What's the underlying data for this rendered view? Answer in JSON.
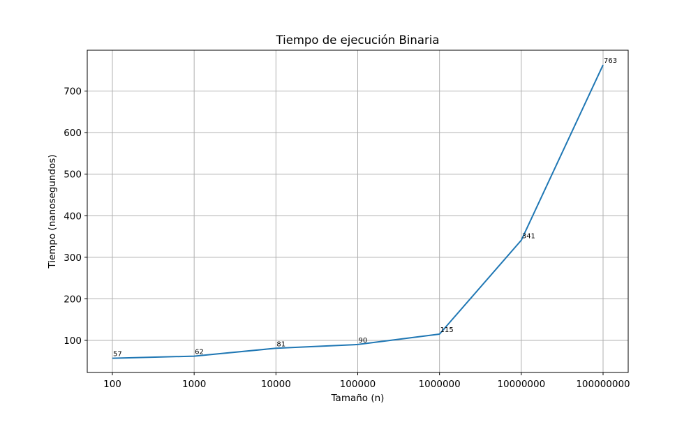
{
  "chart_data": {
    "type": "line",
    "title": "Tiempo de ejecución Binaria",
    "xlabel": "Tamaño (n)",
    "ylabel": "Tiempo (nanosegundos)",
    "categories": [
      "100",
      "1000",
      "10000",
      "100000",
      "1000000",
      "10000000",
      "100000000"
    ],
    "series": [
      {
        "values": [
          57,
          62,
          81,
          90,
          115,
          341,
          763
        ],
        "color": "#1f77b4"
      }
    ],
    "data_labels": [
      "57",
      "62",
      "81",
      "90",
      "115",
      "341",
      "763"
    ],
    "yticks": [
      100,
      200,
      300,
      400,
      500,
      600,
      700
    ],
    "ytick_labels": [
      "100",
      "200",
      "300",
      "400",
      "500",
      "600",
      "700"
    ],
    "ylim": [
      22.7,
      798.3
    ],
    "grid": true,
    "colors": {
      "grid": "#b0b0b0",
      "axes": "#000000",
      "line": "#1f77b4"
    }
  }
}
